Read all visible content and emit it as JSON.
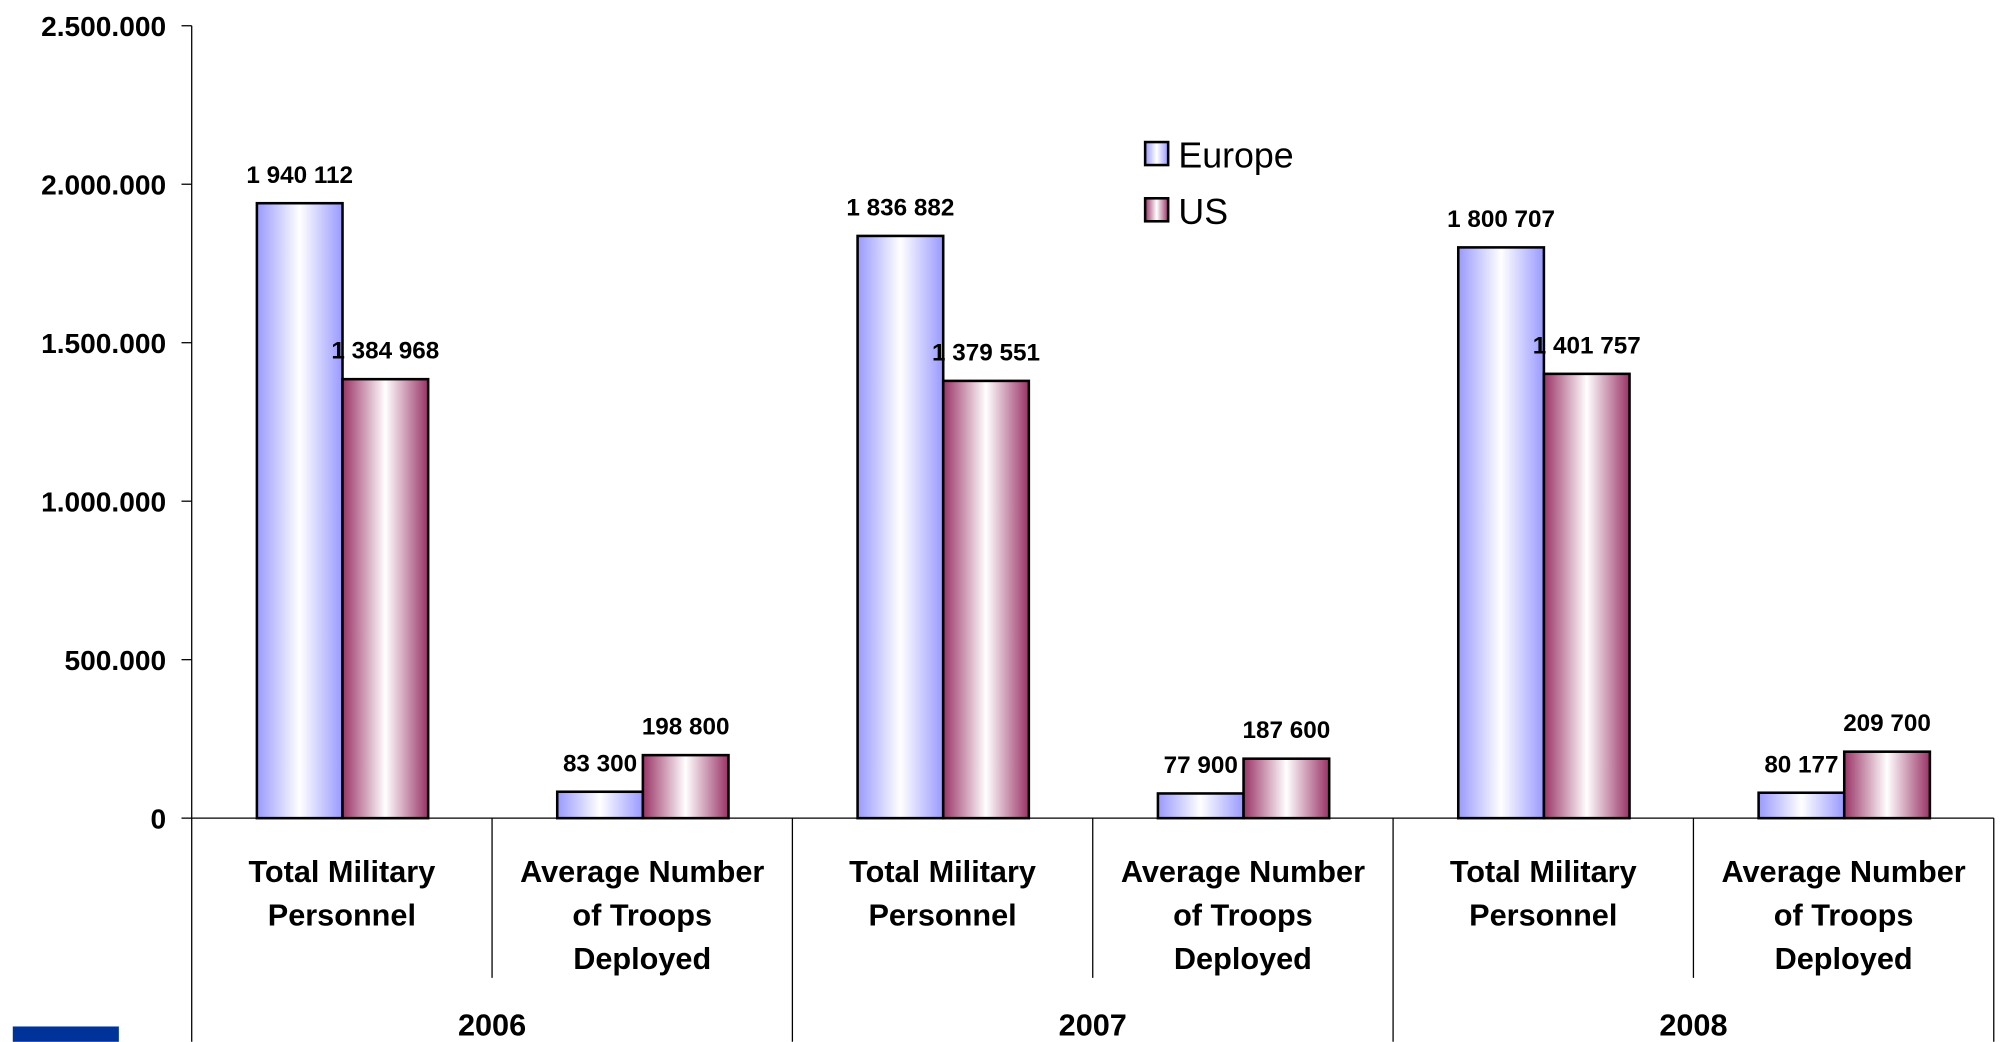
{
  "chart_data": {
    "type": "bar",
    "categories": [
      "Total Military Personnel",
      "Average Number of Troops Deployed",
      "Total Military Personnel",
      "Average Number of Troops Deployed",
      "Total Military Personnel",
      "Average Number of Troops Deployed"
    ],
    "groups": [
      "2006",
      "2007",
      "2008"
    ],
    "series": [
      {
        "name": "Europe",
        "color": "#9999ff",
        "values": [
          1940112,
          83300,
          1836882,
          77900,
          1800707,
          80177
        ],
        "value_labels": [
          "1 940 112",
          "83 300",
          "1 836 882",
          "77 900",
          "1 800 707",
          "80 177"
        ]
      },
      {
        "name": "US",
        "color": "#993366",
        "values": [
          1384968,
          198800,
          1379551,
          187600,
          1401757,
          209700
        ],
        "value_labels": [
          "1 384 968",
          "198 800",
          "1 379 551",
          "187 600",
          "1 401 757",
          "209 700"
        ]
      }
    ],
    "ylim": [
      0,
      2500000
    ],
    "yticks": [
      0,
      {
        "value": 500000,
        "label": "500.000"
      },
      {
        "value": 1000000,
        "label": "1.000.000"
      },
      {
        "value": 1500000,
        "label": "1.500.000"
      },
      {
        "value": 2000000,
        "label": "2.000.000"
      },
      {
        "value": 2500000,
        "label": "2.500.000"
      }
    ],
    "legend": "upper-center"
  }
}
